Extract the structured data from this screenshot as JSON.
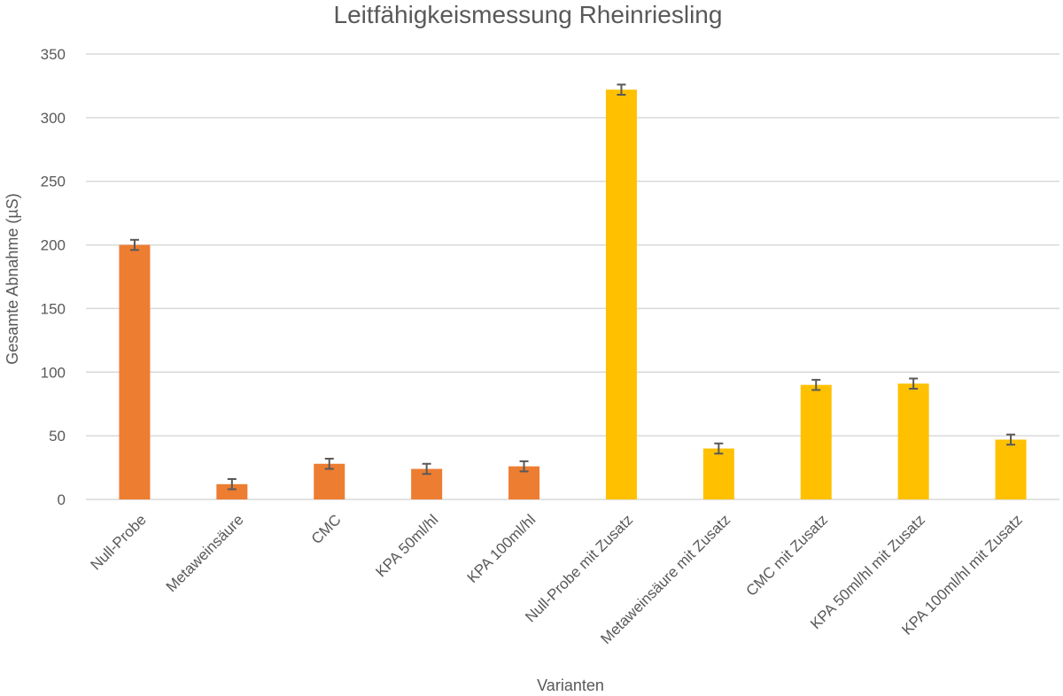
{
  "chart_data": {
    "type": "bar",
    "title": "Leitfähigkeismessung Rheinriesling",
    "xlabel": "Varianten",
    "ylabel": "Gesamte Abnahme (µS)",
    "ylim": [
      0,
      350
    ],
    "yticks": [
      0,
      50,
      100,
      150,
      200,
      250,
      300,
      350
    ],
    "grid": true,
    "categories": [
      "Null-Probe",
      "Metaweinsäure",
      "CMC",
      "KPA 50ml/hl",
      "KPA 100ml/hl",
      "Null-Probe mit Zusatz",
      "Metaweinsäure mit Zusatz",
      "CMC mit Zusatz",
      "KPA 50ml/hl mit Zusatz",
      "KPA 100ml/hl mit Zusatz"
    ],
    "values": [
      200,
      12,
      28,
      24,
      26,
      322,
      40,
      90,
      91,
      47
    ],
    "errors": [
      4,
      4,
      4,
      4,
      4,
      4,
      4,
      4,
      4,
      4
    ],
    "bar_colors": [
      "#ED7D31",
      "#ED7D31",
      "#ED7D31",
      "#ED7D31",
      "#ED7D31",
      "#FFC000",
      "#FFC000",
      "#FFC000",
      "#FFC000",
      "#FFC000"
    ],
    "error_bar_color": "#595959",
    "grid_color": "#D9D9D9"
  }
}
